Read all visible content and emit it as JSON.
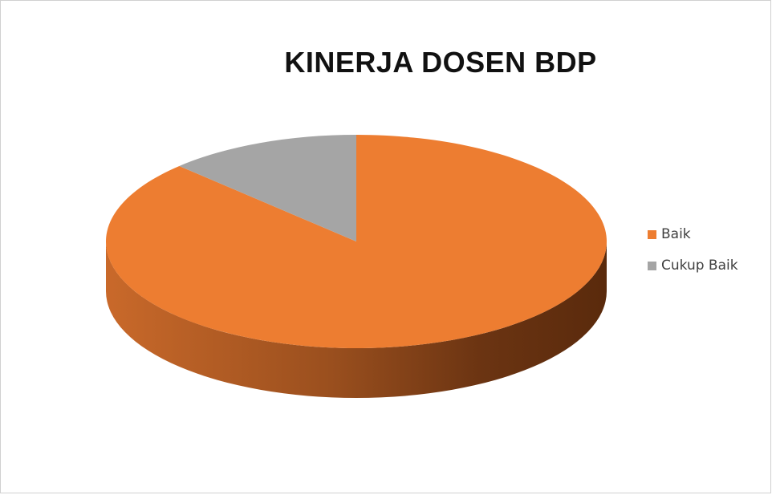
{
  "chart_data": {
    "type": "pie",
    "title": "KINERJA DOSEN BDP",
    "categories": [
      "Baik",
      "Cukup Baik"
    ],
    "values": [
      87.5,
      12.5
    ],
    "colors": [
      "#ED7D31",
      "#A5A5A5"
    ],
    "legend_position": "right",
    "style": "3d"
  }
}
